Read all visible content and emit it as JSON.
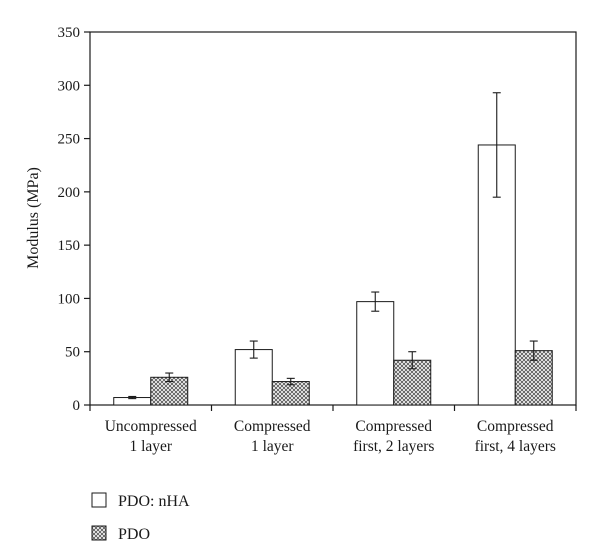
{
  "chart_data": {
    "type": "bar",
    "ylabel": "Modulus (MPa)",
    "xlabel": "",
    "title": "",
    "ylim": [
      0,
      350
    ],
    "yticks": [
      0,
      50,
      100,
      150,
      200,
      250,
      300,
      350
    ],
    "categories": [
      [
        "Uncompressed",
        "1 layer"
      ],
      [
        "Compressed",
        "1 layer"
      ],
      [
        "Compressed",
        "first, 2 layers"
      ],
      [
        "Compressed",
        "first, 4 layers"
      ]
    ],
    "series": [
      {
        "name": "PDO: nHA",
        "fill": "plain",
        "values": [
          7,
          52,
          97,
          244
        ],
        "errors": [
          1,
          8,
          9,
          49
        ]
      },
      {
        "name": "PDO",
        "fill": "crosshatch",
        "values": [
          26,
          22,
          42,
          51
        ],
        "errors": [
          4,
          3,
          8,
          9
        ]
      }
    ],
    "legend_position": "bottom-left",
    "grid": false
  }
}
